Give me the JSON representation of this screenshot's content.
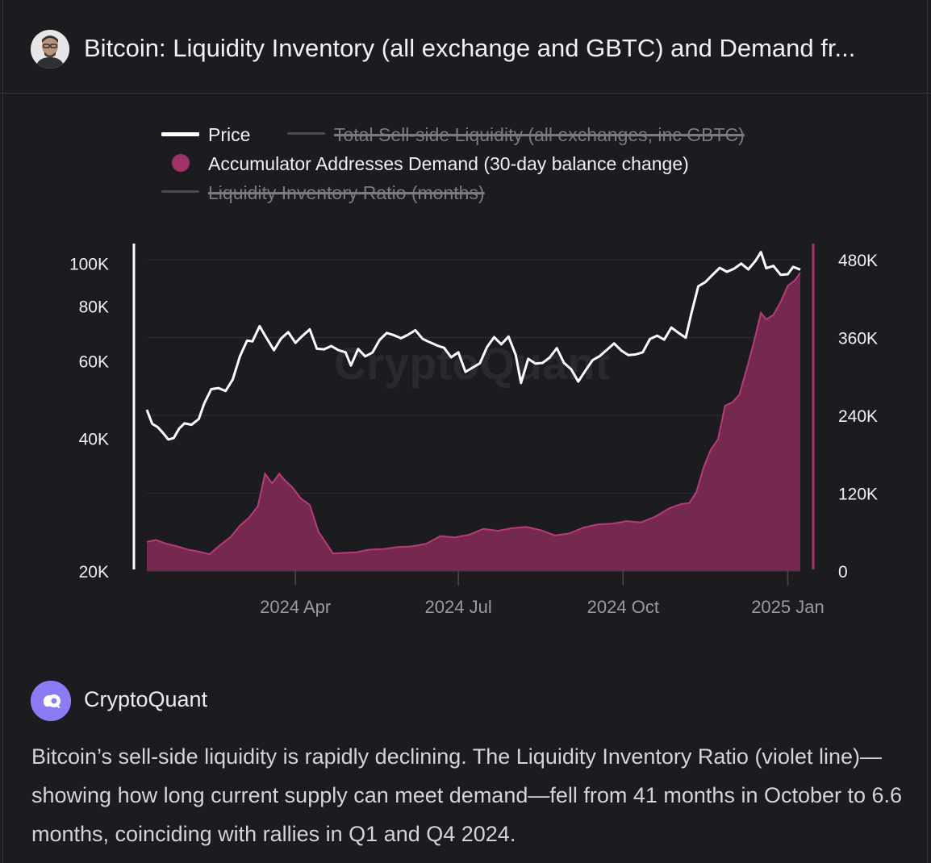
{
  "header": {
    "title": "Bitcoin: Liquidity Inventory (all exchange and GBTC) and Demand fr..."
  },
  "source": {
    "name": "CryptoQuant"
  },
  "caption": "Bitcoin’s sell-side liquidity is rapidly declining. The Liquidity Inventory Ratio (violet line)—showing how long current supply can meet demand—fell from 41 months in October to 6.6 months, coinciding with rallies in Q1 and Q4 2024.",
  "colors": {
    "background": "#1c1b20",
    "price": "#ffffff",
    "demand_fill": "#7a2a52",
    "demand_line": "#b83a78",
    "disabled": "#5a5a60"
  },
  "chart_data": {
    "type": "line+area",
    "watermark": "CryptoQuant",
    "legend": [
      {
        "label": "Price",
        "enabled": true,
        "kind": "line",
        "color": "#ffffff"
      },
      {
        "label": "Total Sell-side Liquidity (all exchanges, inc GBTC)",
        "enabled": false,
        "kind": "line",
        "color": "#5a5a60"
      },
      {
        "label": "Accumulator Addresses Demand (30-day balance change)",
        "enabled": true,
        "kind": "dot",
        "color": "#a0336a"
      },
      {
        "label": "Liquidity Inventory Ratio (months)",
        "enabled": false,
        "kind": "line",
        "color": "#5a5a60"
      }
    ],
    "x_ticks": [
      "2024 Apr",
      "2024 Jul",
      "2024 Oct",
      "2025 Jan"
    ],
    "x_tick_dates": [
      "2024-04-01",
      "2024-07-01",
      "2024-10-01",
      "2025-01-01"
    ],
    "x_range": [
      "2024-01-09",
      "2025-01-08"
    ],
    "y_left": {
      "scale": "log",
      "range": [
        20000,
        110000
      ],
      "ticks": [
        20000,
        40000,
        60000,
        80000,
        100000
      ],
      "tick_labels": [
        "20K",
        "40K",
        "60K",
        "80K",
        "100K"
      ]
    },
    "y_right": {
      "scale": "linear",
      "range": [
        0,
        480000
      ],
      "ticks": [
        0,
        120000,
        240000,
        360000,
        480000
      ],
      "tick_labels": [
        "0",
        "120K",
        "240K",
        "360K",
        "480K"
      ]
    },
    "series": [
      {
        "name": "Price",
        "axis": "left",
        "x": [
          "2024-01-09",
          "2024-01-12",
          "2024-01-15",
          "2024-01-18",
          "2024-01-21",
          "2024-01-24",
          "2024-01-27",
          "2024-01-30",
          "2024-02-03",
          "2024-02-07",
          "2024-02-10",
          "2024-02-14",
          "2024-02-18",
          "2024-02-22",
          "2024-02-26",
          "2024-03-01",
          "2024-03-05",
          "2024-03-08",
          "2024-03-12",
          "2024-03-16",
          "2024-03-20",
          "2024-03-24",
          "2024-03-28",
          "2024-04-01",
          "2024-04-05",
          "2024-04-09",
          "2024-04-13",
          "2024-04-17",
          "2024-04-21",
          "2024-04-25",
          "2024-04-29",
          "2024-05-02",
          "2024-05-06",
          "2024-05-10",
          "2024-05-14",
          "2024-05-18",
          "2024-05-22",
          "2024-05-26",
          "2024-05-30",
          "2024-06-03",
          "2024-06-07",
          "2024-06-11",
          "2024-06-15",
          "2024-06-19",
          "2024-06-23",
          "2024-06-27",
          "2024-07-01",
          "2024-07-05",
          "2024-07-09",
          "2024-07-13",
          "2024-07-17",
          "2024-07-21",
          "2024-07-25",
          "2024-07-29",
          "2024-08-02",
          "2024-08-05",
          "2024-08-09",
          "2024-08-13",
          "2024-08-17",
          "2024-08-21",
          "2024-08-25",
          "2024-08-29",
          "2024-09-02",
          "2024-09-06",
          "2024-09-10",
          "2024-09-14",
          "2024-09-18",
          "2024-09-22",
          "2024-09-26",
          "2024-09-30",
          "2024-10-04",
          "2024-10-08",
          "2024-10-12",
          "2024-10-16",
          "2024-10-20",
          "2024-10-24",
          "2024-10-28",
          "2024-11-01",
          "2024-11-05",
          "2024-11-08",
          "2024-11-12",
          "2024-11-16",
          "2024-11-20",
          "2024-11-24",
          "2024-11-28",
          "2024-12-02",
          "2024-12-06",
          "2024-12-10",
          "2024-12-14",
          "2024-12-17",
          "2024-12-20",
          "2024-12-24",
          "2024-12-28",
          "2025-01-01",
          "2025-01-04",
          "2025-01-08"
        ],
        "values": [
          46500,
          43200,
          42500,
          41200,
          39800,
          40100,
          42100,
          43300,
          43000,
          44300,
          48000,
          51800,
          52100,
          51300,
          54500,
          61500,
          66800,
          66500,
          72000,
          67500,
          63500,
          67500,
          69800,
          66000,
          68500,
          70800,
          64000,
          63800,
          64900,
          63500,
          62800,
          58600,
          63900,
          61500,
          62700,
          67000,
          69500,
          68700,
          67600,
          68900,
          70500,
          67400,
          66200,
          65100,
          64300,
          61200,
          62800,
          56700,
          58000,
          59300,
          64500,
          68000,
          65500,
          68200,
          62000,
          53500,
          60700,
          59200,
          59400,
          61100,
          64200,
          59400,
          57500,
          53900,
          57100,
          60300,
          61600,
          63600,
          65800,
          63400,
          61900,
          62100,
          62800,
          67300,
          68500,
          67100,
          71500,
          69500,
          67800,
          76500,
          88700,
          90700,
          94200,
          97700,
          95700,
          97300,
          99900,
          96900,
          101400,
          106100,
          97500,
          98700,
          94200,
          94500,
          98200,
          96800
        ]
      },
      {
        "name": "Accumulator Addresses Demand (30-day balance change)",
        "axis": "right",
        "x": [
          "2024-01-09",
          "2024-01-14",
          "2024-01-20",
          "2024-01-26",
          "2024-02-01",
          "2024-02-07",
          "2024-02-13",
          "2024-02-19",
          "2024-02-25",
          "2024-03-01",
          "2024-03-06",
          "2024-03-11",
          "2024-03-15",
          "2024-03-19",
          "2024-03-23",
          "2024-03-26",
          "2024-03-30",
          "2024-04-04",
          "2024-04-09",
          "2024-04-14",
          "2024-04-17",
          "2024-04-22",
          "2024-04-28",
          "2024-05-05",
          "2024-05-12",
          "2024-05-20",
          "2024-05-28",
          "2024-06-05",
          "2024-06-13",
          "2024-06-21",
          "2024-06-29",
          "2024-07-07",
          "2024-07-15",
          "2024-07-23",
          "2024-07-31",
          "2024-08-08",
          "2024-08-16",
          "2024-08-24",
          "2024-09-01",
          "2024-09-09",
          "2024-09-17",
          "2024-09-25",
          "2024-10-03",
          "2024-10-11",
          "2024-10-19",
          "2024-10-27",
          "2024-11-02",
          "2024-11-07",
          "2024-11-11",
          "2024-11-15",
          "2024-11-19",
          "2024-11-23",
          "2024-11-27",
          "2024-12-01",
          "2024-12-05",
          "2024-12-09",
          "2024-12-13",
          "2024-12-17",
          "2024-12-20",
          "2024-12-24",
          "2024-12-28",
          "2025-01-01",
          "2025-01-05",
          "2025-01-08"
        ],
        "values": [
          45000,
          48000,
          42000,
          38000,
          33000,
          30000,
          26000,
          40000,
          53000,
          70000,
          82000,
          100000,
          150000,
          135000,
          150000,
          140000,
          130000,
          112000,
          102000,
          60000,
          48000,
          27000,
          28000,
          29000,
          33000,
          34000,
          37000,
          38000,
          42000,
          54000,
          52000,
          56000,
          65000,
          62000,
          66000,
          68000,
          63000,
          55000,
          58000,
          67000,
          72000,
          73000,
          77000,
          75000,
          84000,
          97000,
          103000,
          105000,
          122000,
          160000,
          187000,
          203000,
          255000,
          260000,
          272000,
          311000,
          352000,
          398000,
          388000,
          395000,
          415000,
          440000,
          448000,
          460000
        ]
      }
    ]
  }
}
